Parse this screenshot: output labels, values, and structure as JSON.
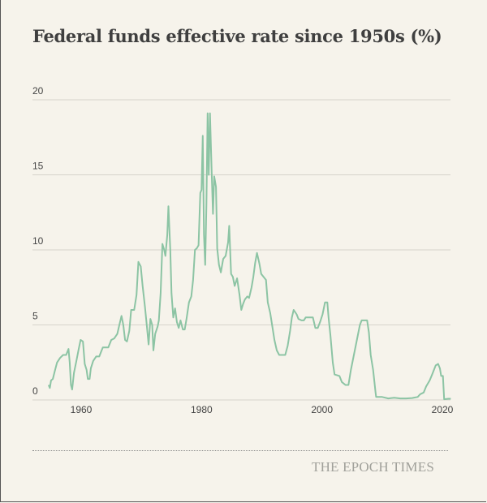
{
  "chart_data": {
    "type": "line",
    "title": "Federal funds effective rate since 1950s (%)",
    "xlabel": "",
    "ylabel": "",
    "xlim": [
      1954.5,
      2021.5
    ],
    "ylim": [
      0,
      20
    ],
    "x_ticks": [
      1960,
      1980,
      2000,
      2020
    ],
    "y_ticks": [
      0,
      5,
      10,
      15,
      20
    ],
    "grid": "horizontal",
    "legend": "none",
    "line_color": "#8cc4a4",
    "series": [
      {
        "points": [
          [
            1954.6,
            1.0
          ],
          [
            1954.8,
            0.8
          ],
          [
            1955.0,
            1.3
          ],
          [
            1955.3,
            1.4
          ],
          [
            1955.6,
            1.9
          ],
          [
            1956.0,
            2.5
          ],
          [
            1956.5,
            2.8
          ],
          [
            1957.0,
            3.0
          ],
          [
            1957.5,
            3.0
          ],
          [
            1957.9,
            3.4
          ],
          [
            1958.1,
            2.5
          ],
          [
            1958.3,
            1.0
          ],
          [
            1958.5,
            0.7
          ],
          [
            1958.8,
            1.8
          ],
          [
            1959.2,
            2.6
          ],
          [
            1959.6,
            3.4
          ],
          [
            1959.9,
            4.0
          ],
          [
            1960.3,
            3.9
          ],
          [
            1960.6,
            2.4
          ],
          [
            1960.9,
            2.0
          ],
          [
            1961.1,
            1.4
          ],
          [
            1961.4,
            1.4
          ],
          [
            1961.6,
            2.1
          ],
          [
            1962.0,
            2.6
          ],
          [
            1962.5,
            2.9
          ],
          [
            1963.0,
            2.9
          ],
          [
            1963.3,
            3.2
          ],
          [
            1963.6,
            3.5
          ],
          [
            1964.0,
            3.5
          ],
          [
            1964.5,
            3.5
          ],
          [
            1965.0,
            4.0
          ],
          [
            1965.5,
            4.1
          ],
          [
            1966.0,
            4.4
          ],
          [
            1966.4,
            5.1
          ],
          [
            1966.7,
            5.6
          ],
          [
            1967.0,
            5.0
          ],
          [
            1967.3,
            4.0
          ],
          [
            1967.6,
            3.9
          ],
          [
            1968.0,
            4.6
          ],
          [
            1968.3,
            6.0
          ],
          [
            1968.8,
            6.0
          ],
          [
            1969.2,
            7.0
          ],
          [
            1969.5,
            9.2
          ],
          [
            1969.9,
            8.9
          ],
          [
            1970.2,
            7.6
          ],
          [
            1970.6,
            6.2
          ],
          [
            1970.9,
            5.0
          ],
          [
            1971.2,
            3.7
          ],
          [
            1971.5,
            5.4
          ],
          [
            1971.8,
            5.0
          ],
          [
            1972.0,
            3.3
          ],
          [
            1972.3,
            4.4
          ],
          [
            1972.7,
            4.9
          ],
          [
            1972.9,
            5.3
          ],
          [
            1973.2,
            7.1
          ],
          [
            1973.5,
            10.4
          ],
          [
            1973.8,
            10.0
          ],
          [
            1974.0,
            9.6
          ],
          [
            1974.3,
            11.0
          ],
          [
            1974.5,
            12.9
          ],
          [
            1974.8,
            10.0
          ],
          [
            1975.0,
            7.1
          ],
          [
            1975.3,
            5.5
          ],
          [
            1975.6,
            6.1
          ],
          [
            1975.9,
            5.2
          ],
          [
            1976.2,
            4.8
          ],
          [
            1976.5,
            5.3
          ],
          [
            1976.9,
            4.7
          ],
          [
            1977.2,
            4.7
          ],
          [
            1977.5,
            5.4
          ],
          [
            1977.9,
            6.5
          ],
          [
            1978.3,
            6.9
          ],
          [
            1978.6,
            8.0
          ],
          [
            1978.9,
            10.0
          ],
          [
            1979.2,
            10.1
          ],
          [
            1979.5,
            10.3
          ],
          [
            1979.8,
            13.8
          ],
          [
            1980.0,
            14.0
          ],
          [
            1980.2,
            17.6
          ],
          [
            1980.4,
            11.0
          ],
          [
            1980.6,
            9.0
          ],
          [
            1980.8,
            13.0
          ],
          [
            1981.0,
            19.1
          ],
          [
            1981.2,
            15.0
          ],
          [
            1981.4,
            19.1
          ],
          [
            1981.7,
            15.0
          ],
          [
            1981.9,
            12.4
          ],
          [
            1982.1,
            14.9
          ],
          [
            1982.4,
            14.2
          ],
          [
            1982.6,
            10.1
          ],
          [
            1982.9,
            9.0
          ],
          [
            1983.2,
            8.5
          ],
          [
            1983.6,
            9.4
          ],
          [
            1984.0,
            9.6
          ],
          [
            1984.4,
            10.5
          ],
          [
            1984.6,
            11.6
          ],
          [
            1984.9,
            8.4
          ],
          [
            1985.2,
            8.2
          ],
          [
            1985.5,
            7.6
          ],
          [
            1985.9,
            8.1
          ],
          [
            1986.3,
            7.0
          ],
          [
            1986.6,
            6.0
          ],
          [
            1986.9,
            6.4
          ],
          [
            1987.2,
            6.7
          ],
          [
            1987.6,
            6.9
          ],
          [
            1987.9,
            6.8
          ],
          [
            1988.3,
            7.5
          ],
          [
            1988.6,
            8.2
          ],
          [
            1988.9,
            9.1
          ],
          [
            1989.2,
            9.8
          ],
          [
            1989.6,
            9.1
          ],
          [
            1989.9,
            8.4
          ],
          [
            1990.3,
            8.2
          ],
          [
            1990.7,
            8.0
          ],
          [
            1991.0,
            6.5
          ],
          [
            1991.4,
            5.8
          ],
          [
            1991.8,
            4.8
          ],
          [
            1992.1,
            4.0
          ],
          [
            1992.5,
            3.3
          ],
          [
            1992.9,
            3.0
          ],
          [
            1993.4,
            3.0
          ],
          [
            1993.9,
            3.0
          ],
          [
            1994.3,
            3.6
          ],
          [
            1994.7,
            4.6
          ],
          [
            1995.0,
            5.5
          ],
          [
            1995.3,
            6.0
          ],
          [
            1995.8,
            5.7
          ],
          [
            1996.1,
            5.4
          ],
          [
            1996.6,
            5.3
          ],
          [
            1997.0,
            5.3
          ],
          [
            1997.3,
            5.5
          ],
          [
            1997.9,
            5.5
          ],
          [
            1998.5,
            5.5
          ],
          [
            1998.9,
            4.8
          ],
          [
            1999.3,
            4.8
          ],
          [
            1999.7,
            5.2
          ],
          [
            2000.1,
            5.7
          ],
          [
            2000.5,
            6.5
          ],
          [
            2000.9,
            6.5
          ],
          [
            2001.1,
            5.5
          ],
          [
            2001.4,
            4.3
          ],
          [
            2001.8,
            2.5
          ],
          [
            2002.1,
            1.7
          ],
          [
            2002.9,
            1.6
          ],
          [
            2003.3,
            1.2
          ],
          [
            2003.9,
            1.0
          ],
          [
            2004.4,
            1.0
          ],
          [
            2004.8,
            2.0
          ],
          [
            2005.3,
            3.0
          ],
          [
            2005.8,
            4.0
          ],
          [
            2006.3,
            5.0
          ],
          [
            2006.6,
            5.3
          ],
          [
            2007.5,
            5.3
          ],
          [
            2007.8,
            4.5
          ],
          [
            2008.1,
            3.0
          ],
          [
            2008.5,
            2.0
          ],
          [
            2008.9,
            0.5
          ],
          [
            2009.0,
            0.2
          ],
          [
            2010.0,
            0.2
          ],
          [
            2011.0,
            0.1
          ],
          [
            2012.0,
            0.15
          ],
          [
            2013.0,
            0.1
          ],
          [
            2014.0,
            0.1
          ],
          [
            2015.0,
            0.13
          ],
          [
            2015.9,
            0.2
          ],
          [
            2016.3,
            0.38
          ],
          [
            2016.9,
            0.5
          ],
          [
            2017.3,
            0.9
          ],
          [
            2017.9,
            1.3
          ],
          [
            2018.3,
            1.7
          ],
          [
            2018.9,
            2.3
          ],
          [
            2019.3,
            2.4
          ],
          [
            2019.6,
            2.1
          ],
          [
            2019.8,
            1.6
          ],
          [
            2020.1,
            1.6
          ],
          [
            2020.3,
            0.05
          ],
          [
            2021.0,
            0.08
          ],
          [
            2021.4,
            0.08
          ]
        ]
      }
    ]
  },
  "footer": {
    "brand": "THE EPOCH TIMES"
  }
}
